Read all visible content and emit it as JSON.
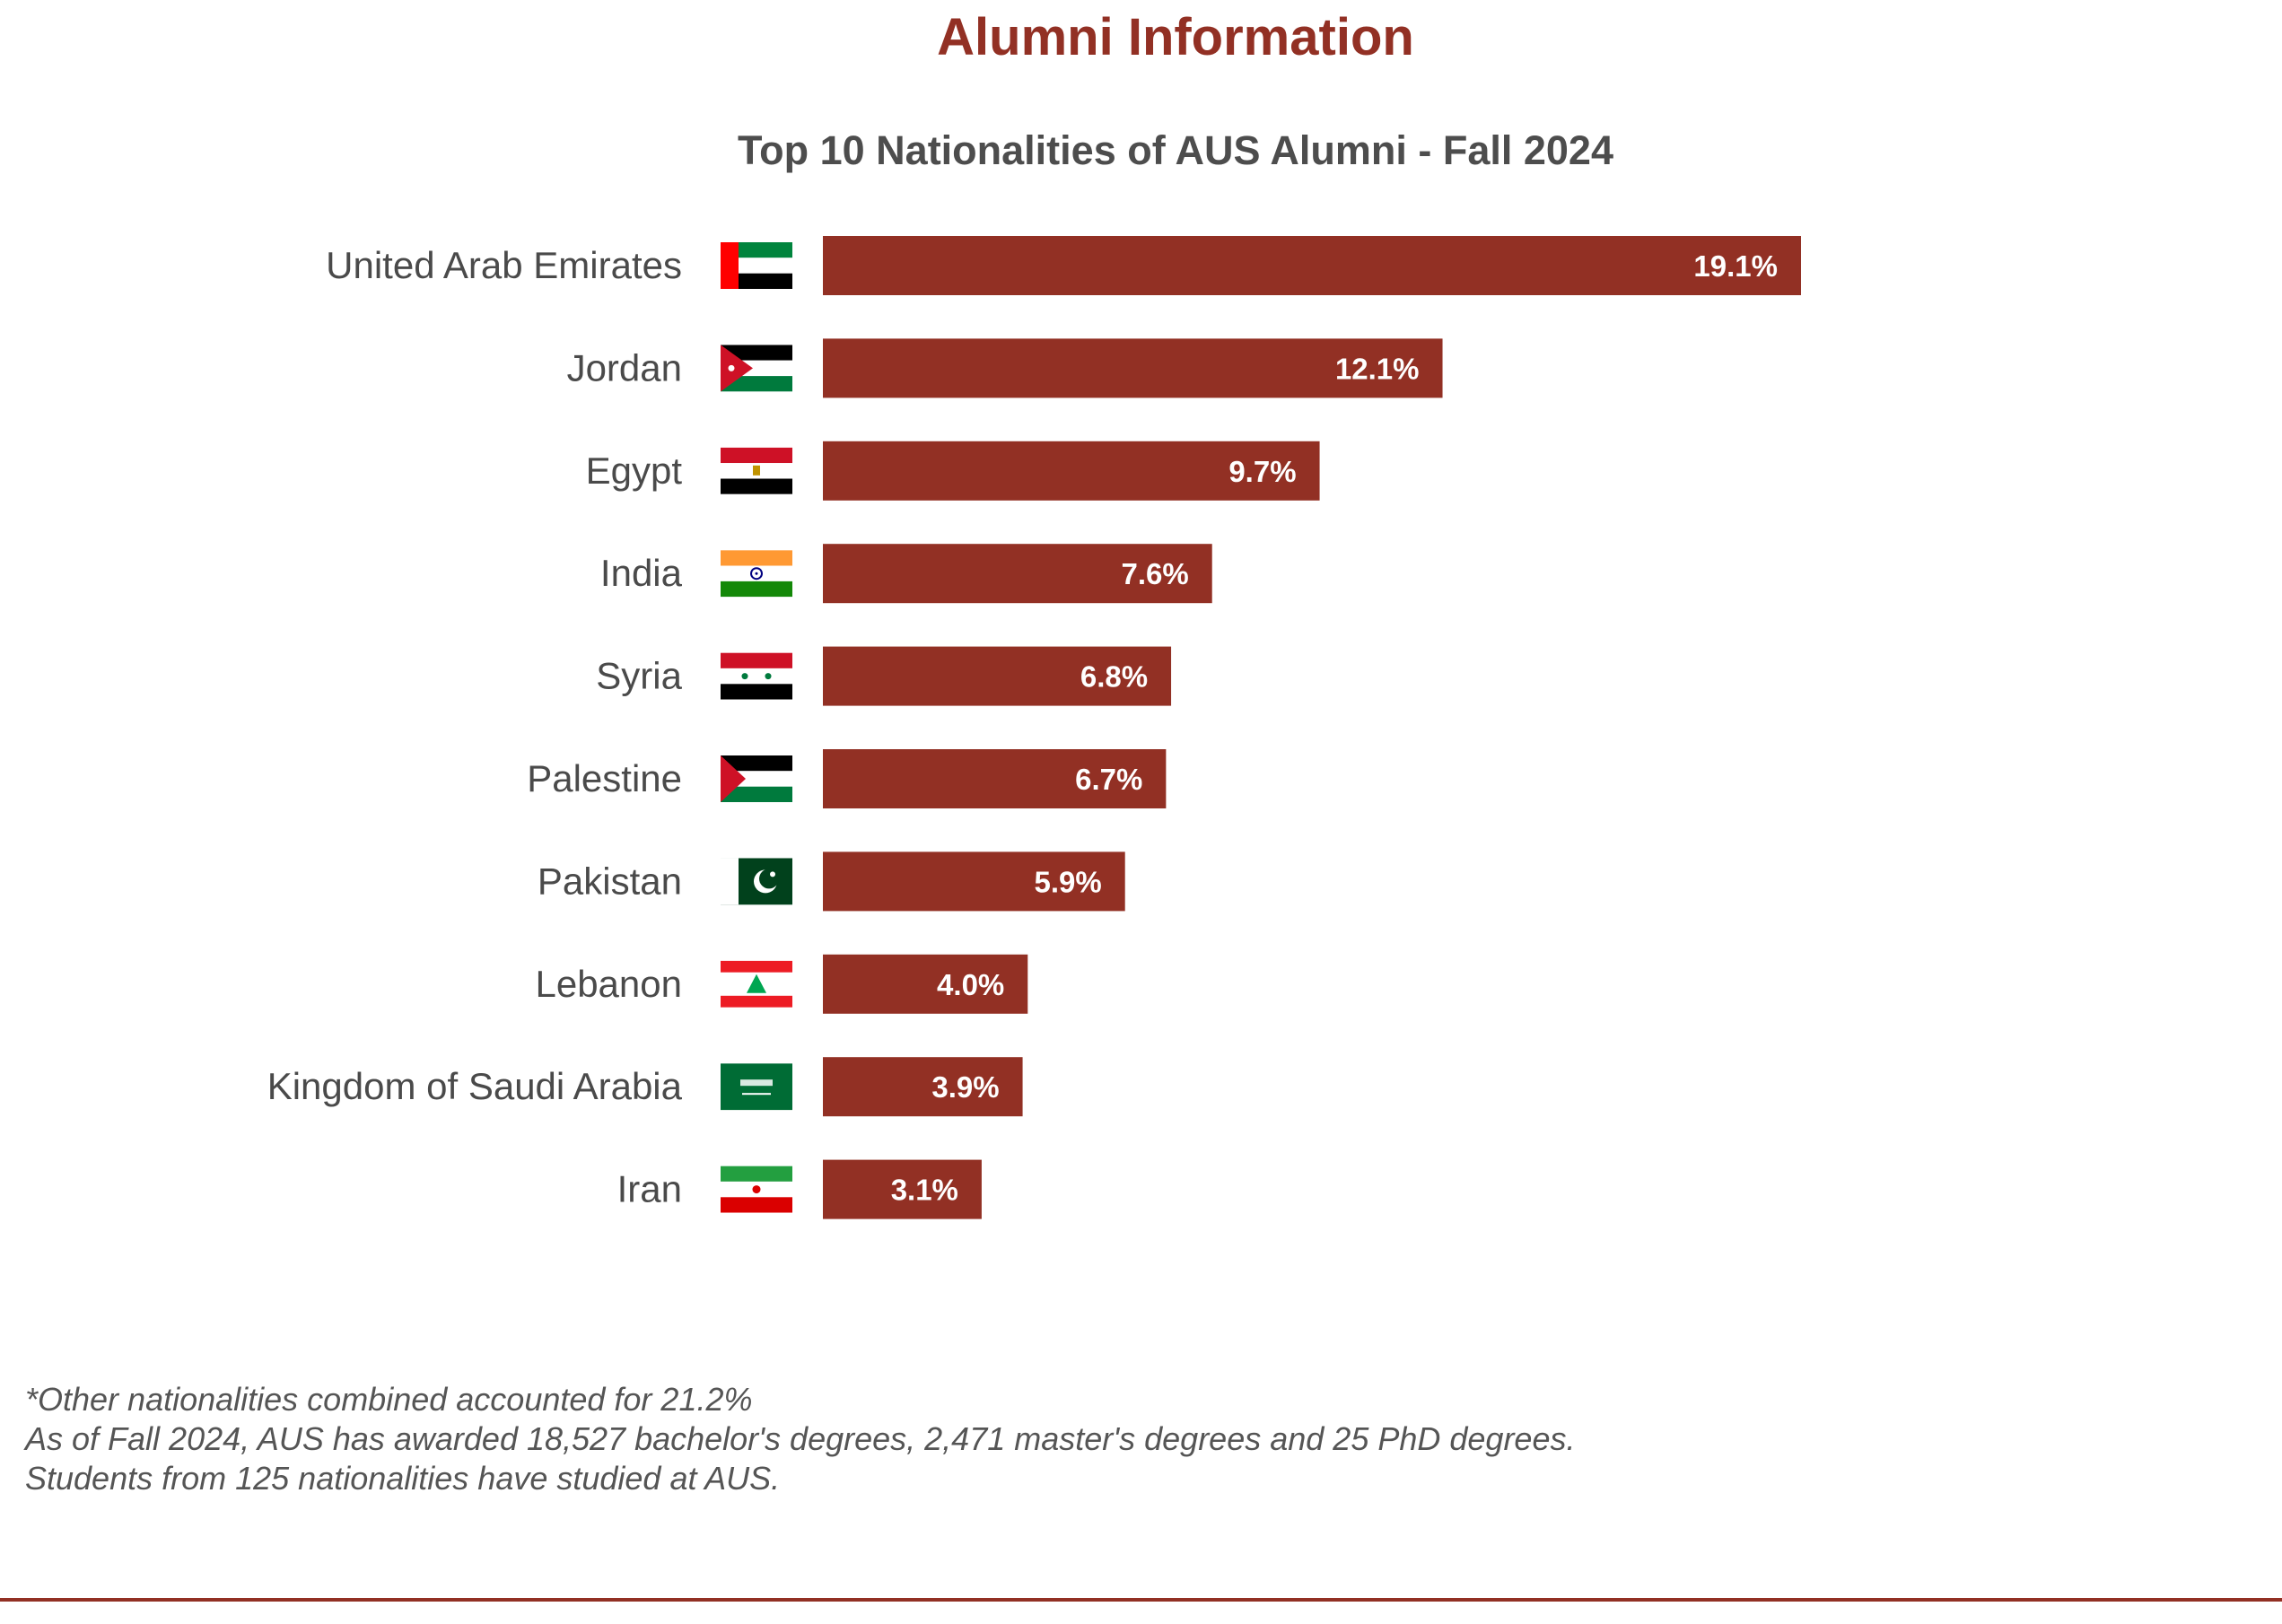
{
  "page": {
    "title": "Alumni Information"
  },
  "chart_data": {
    "type": "bar",
    "orientation": "horizontal",
    "title": "Top 10 Nationalities of AUS Alumni - Fall 2024",
    "categories": [
      "United Arab Emirates",
      "Jordan",
      "Egypt",
      "India",
      "Syria",
      "Palestine",
      "Pakistan",
      "Lebanon",
      "Kingdom of Saudi Arabia",
      "Iran"
    ],
    "values": [
      19.1,
      12.1,
      9.7,
      7.6,
      6.8,
      6.7,
      5.9,
      4.0,
      3.9,
      3.1
    ],
    "value_labels": [
      "19.1%",
      "12.1%",
      "9.7%",
      "7.6%",
      "6.8%",
      "6.7%",
      "5.9%",
      "4.0%",
      "3.9%",
      "3.1%"
    ],
    "flag_icons": [
      "uae-flag-icon",
      "jordan-flag-icon",
      "egypt-flag-icon",
      "india-flag-icon",
      "syria-flag-icon",
      "palestine-flag-icon",
      "pakistan-flag-icon",
      "lebanon-flag-icon",
      "saudi-arabia-flag-icon",
      "iran-flag-icon"
    ],
    "xlim": [
      0,
      19.1
    ],
    "bar_color": "#923024",
    "grid": false,
    "legend": "none",
    "xlabel": "",
    "ylabel": ""
  },
  "notes": {
    "line1": "*Other nationalities combined accounted for 21.2%",
    "line2": "As of Fall 2024, AUS has awarded 18,527 bachelor's degrees, 2,471 master's degrees and 25 PhD degrees.",
    "line3": "Students from 125 nationalities have studied at AUS."
  },
  "colors": {
    "accent": "#923024",
    "text": "#4d4d4d"
  }
}
